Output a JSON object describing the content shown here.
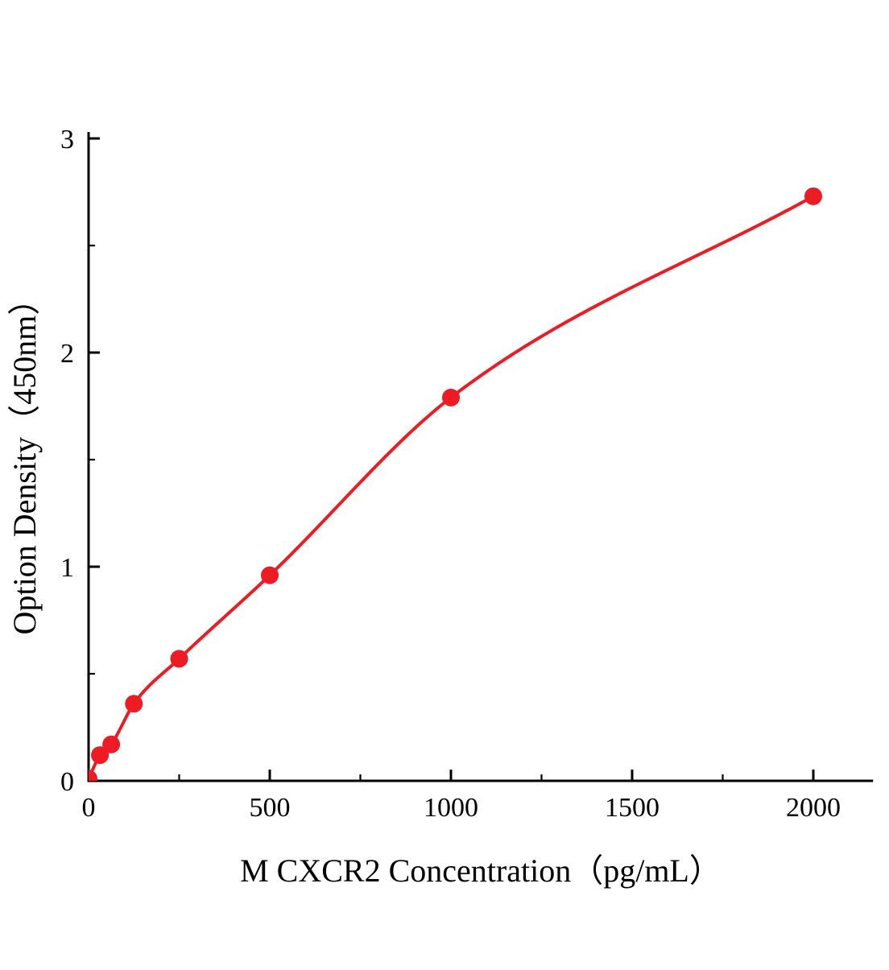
{
  "chart_data": {
    "type": "scatter",
    "title": "",
    "xlabel": "M CXCR2 Concentration（pg/mL）",
    "ylabel": "Option Density（450nm）",
    "x": [
      0,
      31.25,
      62.5,
      125,
      250,
      500,
      1000,
      2000
    ],
    "y": [
      0.01,
      0.12,
      0.17,
      0.36,
      0.57,
      0.96,
      1.79,
      2.73
    ],
    "x_ticks": [
      0,
      500,
      1000,
      1500,
      2000
    ],
    "y_ticks": [
      0,
      1,
      2,
      3
    ],
    "x_minor_ticks": [
      250,
      750,
      1250,
      1750
    ],
    "y_minor_ticks": [
      0.5,
      1.5,
      2.5
    ],
    "xlim": [
      0,
      2165
    ],
    "ylim": [
      0,
      3.03
    ],
    "grid": false,
    "legend": null,
    "fit_line": true,
    "marker_color": "#ed1c24",
    "line_color": "#ed1c24",
    "axis_color": "#000000"
  }
}
